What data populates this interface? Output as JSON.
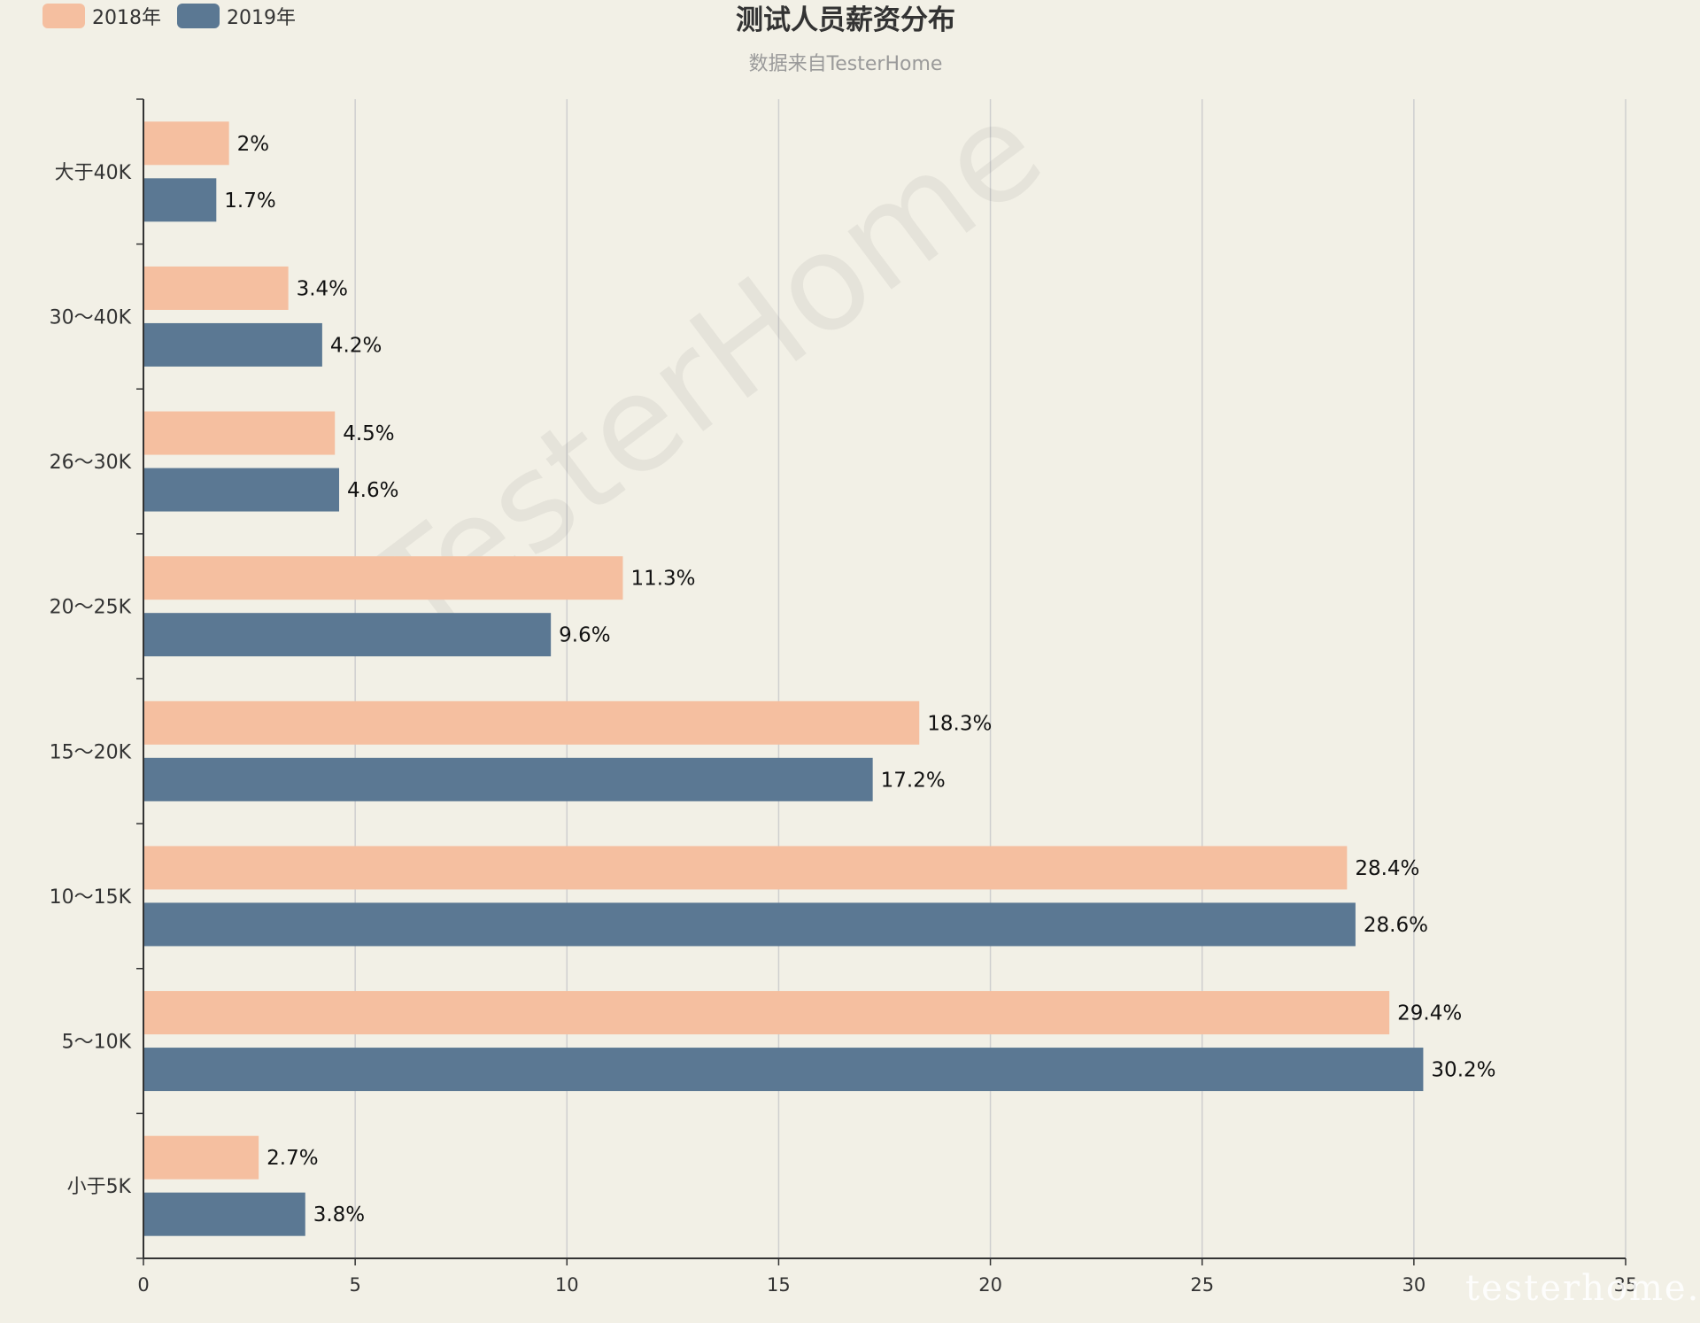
{
  "chart_data": {
    "type": "bar",
    "orientation": "horizontal",
    "title": "测试人员薪资分布",
    "subtitle": "数据来自TesterHome",
    "categories": [
      "大于40K",
      "30～40K",
      "26～30K",
      "20～25K",
      "15～20K",
      "10～15K",
      "5～10K",
      "小于5K"
    ],
    "series": [
      {
        "name": "2018年",
        "color": "#f5bfa0",
        "values": [
          2,
          3.4,
          4.5,
          11.3,
          18.3,
          28.4,
          29.4,
          2.7
        ],
        "labels": [
          "2%",
          "3.4%",
          "4.5%",
          "11.3%",
          "18.3%",
          "28.4%",
          "29.4%",
          "2.7%"
        ]
      },
      {
        "name": "2019年",
        "color": "#5b7893",
        "values": [
          1.7,
          4.2,
          4.6,
          9.6,
          17.2,
          28.6,
          30.2,
          3.8
        ],
        "labels": [
          "1.7%",
          "4.2%",
          "4.6%",
          "9.6%",
          "17.2%",
          "28.6%",
          "30.2%",
          "3.8%"
        ]
      }
    ],
    "x_ticks": [
      "0",
      "5",
      "10",
      "15",
      "20",
      "25",
      "30",
      "35"
    ],
    "xlim": [
      0,
      35
    ],
    "grid": true,
    "legend_position": "top-left"
  },
  "watermark": "TesterHome",
  "corner_mark": "testerhome.com"
}
